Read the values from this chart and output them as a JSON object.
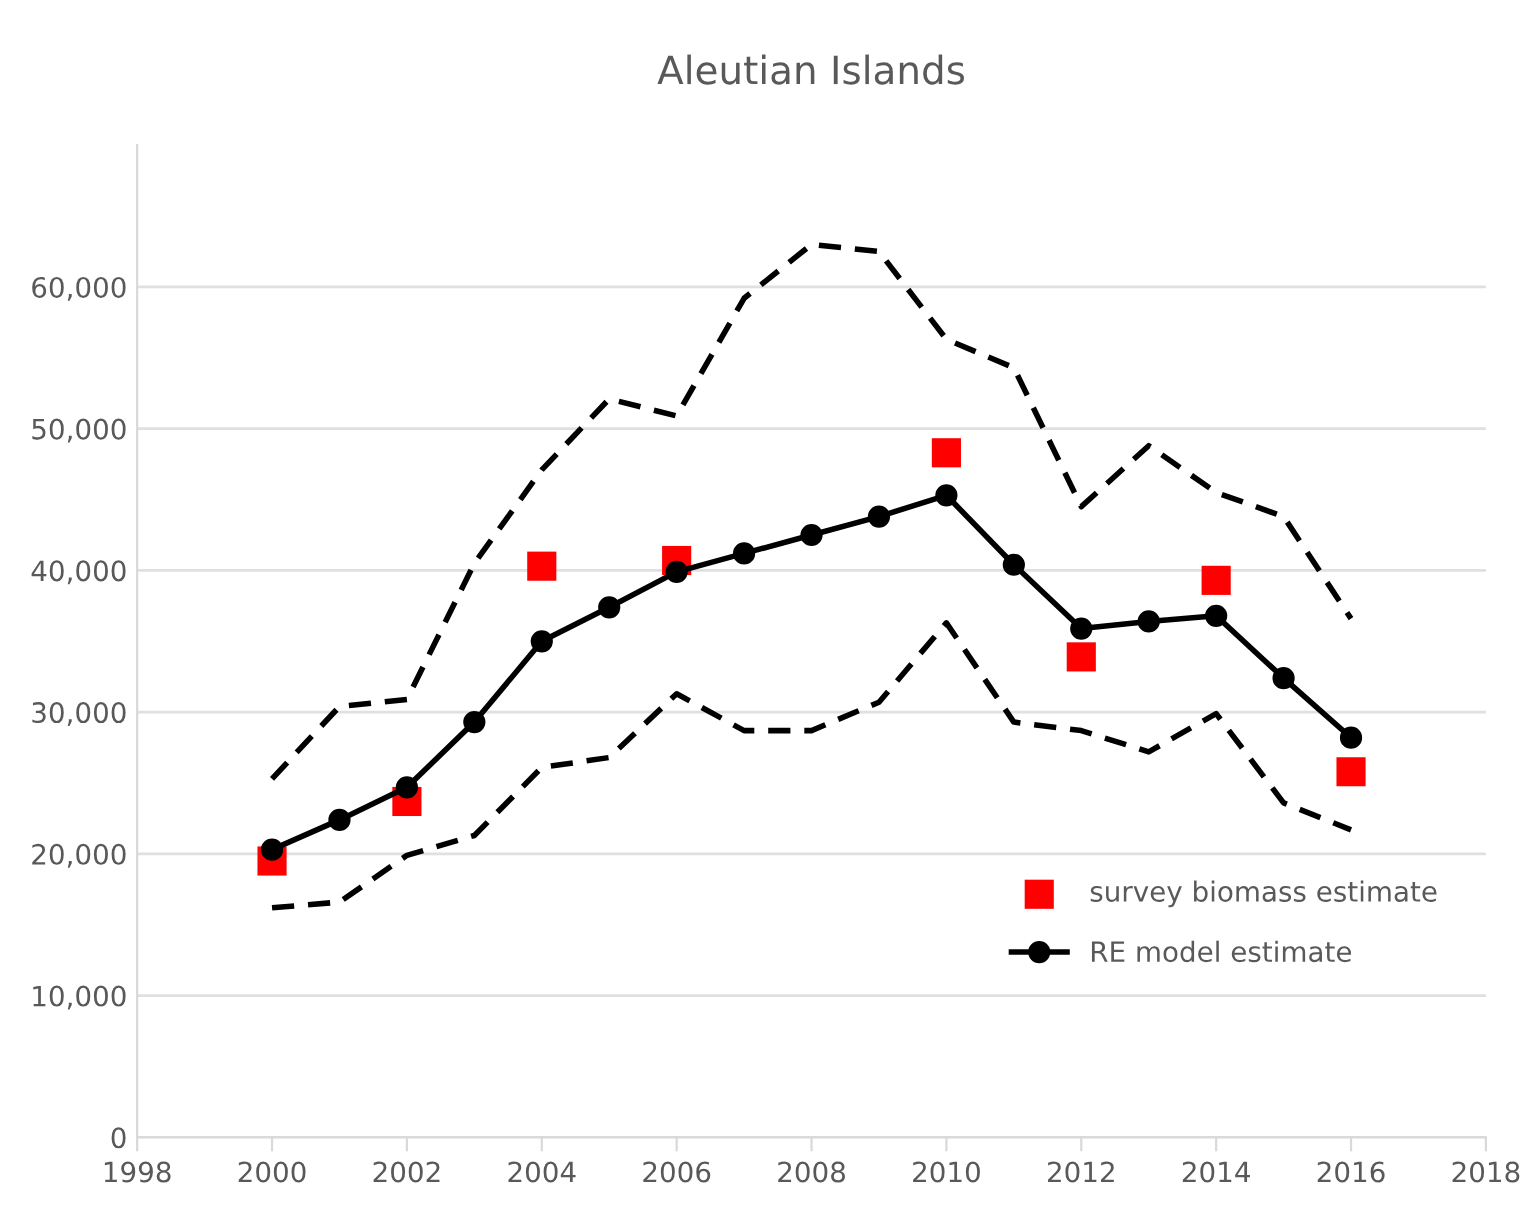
{
  "chart_data": {
    "type": "line",
    "title": "Aleutian Islands",
    "x": [
      2000,
      2001,
      2002,
      2003,
      2004,
      2005,
      2006,
      2007,
      2008,
      2009,
      2010,
      2011,
      2012,
      2013,
      2014,
      2015,
      2016
    ],
    "series": [
      {
        "color": "#000000",
        "line_style": "dashed",
        "marker": "none",
        "values": [
          25300,
          30400,
          30900,
          40500,
          47100,
          52100,
          50900,
          59200,
          63000,
          62500,
          56300,
          54300,
          44500,
          48800,
          45500,
          43800,
          36600
        ]
      },
      {
        "color": "#000000",
        "line_style": "dashed",
        "marker": "none",
        "values": [
          16200,
          16600,
          19900,
          21300,
          26100,
          26800,
          31300,
          28700,
          28700,
          30700,
          36300,
          29300,
          28700,
          27200,
          29900,
          23600,
          21700
        ]
      },
      {
        "name": "survey biomass estimate",
        "type": "scatter",
        "color": "#ff0000",
        "marker": "square",
        "x": [
          2000,
          2002,
          2004,
          2006,
          2010,
          2012,
          2014,
          2016
        ],
        "values": [
          19500,
          23700,
          40300,
          40700,
          48300,
          33900,
          39300,
          25800
        ]
      },
      {
        "name": "RE model estimate",
        "color": "#000000",
        "line_style": "solid",
        "marker": "circle",
        "values": [
          20300,
          22400,
          24700,
          29300,
          35000,
          37400,
          39900,
          41200,
          42500,
          43800,
          45300,
          40400,
          35900,
          36400,
          36800,
          32400,
          28200
        ]
      }
    ],
    "xlim": [
      1998,
      2018
    ],
    "xticks": [
      1998,
      2000,
      2002,
      2004,
      2006,
      2008,
      2010,
      2012,
      2014,
      2016,
      2018
    ],
    "ylim": [
      0,
      70000
    ],
    "yticks": [
      0,
      {
        "value": 10000,
        "label": "10,000"
      },
      {
        "value": 20000,
        "label": "20,000"
      },
      {
        "value": 30000,
        "label": "30,000"
      },
      {
        "value": 40000,
        "label": "40,000"
      },
      {
        "value": 50000,
        "label": "50,000"
      },
      {
        "value": 60000,
        "label": "60,000"
      }
    ],
    "grid": "y",
    "legend": "bottom right"
  }
}
